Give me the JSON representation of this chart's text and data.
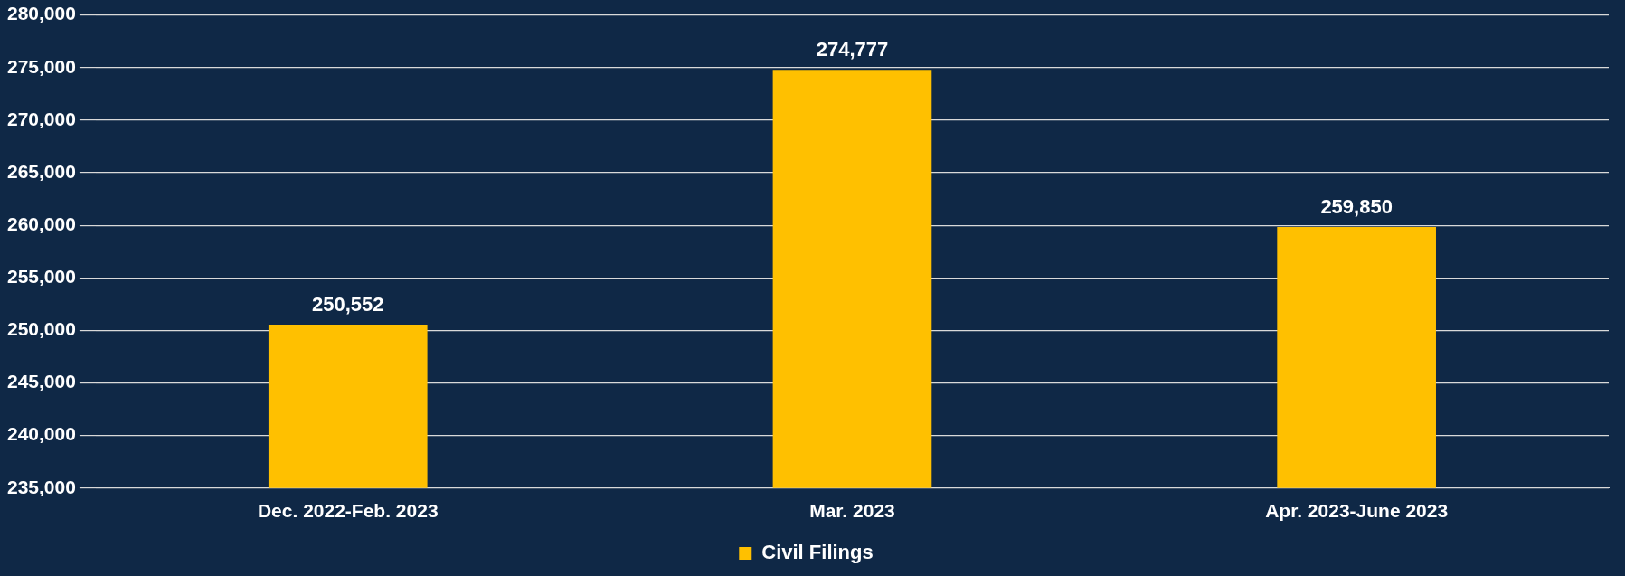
{
  "chart_data": {
    "type": "bar",
    "categories": [
      "Dec. 2022-Feb. 2023",
      "Mar. 2023",
      "Apr. 2023-June 2023"
    ],
    "series": [
      {
        "name": "Civil Filings",
        "color": "#ffc000",
        "values": [
          250552,
          274777,
          259850
        ],
        "value_labels": [
          "250,552",
          "274,777",
          "259,850"
        ]
      }
    ],
    "ylim": [
      235000,
      280000
    ],
    "yticks": [
      {
        "value": 235000,
        "label": "235,000"
      },
      {
        "value": 240000,
        "label": "240,000"
      },
      {
        "value": 245000,
        "label": "245,000"
      },
      {
        "value": 250000,
        "label": "250,000"
      },
      {
        "value": 255000,
        "label": "255,000"
      },
      {
        "value": 260000,
        "label": "260,000"
      },
      {
        "value": 265000,
        "label": "265,000"
      },
      {
        "value": 270000,
        "label": "270,000"
      },
      {
        "value": 275000,
        "label": "275,000"
      },
      {
        "value": 280000,
        "label": "280,000"
      }
    ],
    "grid": "y",
    "legend": "bottom"
  }
}
